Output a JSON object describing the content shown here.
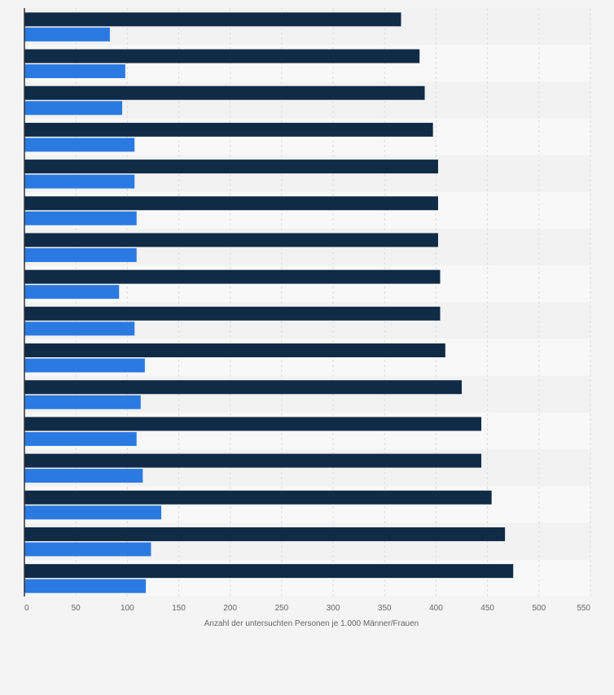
{
  "chart_data": {
    "type": "bar",
    "orientation": "horizontal",
    "title": "",
    "xlabel": "Anzahl der untersuchten Personen je 1.000 Männer/Frauen",
    "ylabel": "",
    "xlim": [
      0,
      550
    ],
    "x_ticks": [
      "0",
      "50",
      "100",
      "150",
      "200",
      "250",
      "300",
      "350",
      "400",
      "450",
      "500",
      "550"
    ],
    "grid": true,
    "legend": "none",
    "categories": [
      "",
      "",
      "",
      "",
      "",
      "",
      "",
      "",
      "",
      "",
      "",
      "",
      "",
      "",
      "",
      ""
    ],
    "series": [
      {
        "color": "#0f2b46",
        "values": [
          366,
          384,
          389,
          397,
          402,
          402,
          402,
          404,
          404,
          409,
          425,
          444,
          444,
          454,
          467,
          475
        ]
      },
      {
        "color": "#2a7ae2",
        "values": [
          83,
          98,
          95,
          107,
          107,
          109,
          109,
          92,
          107,
          117,
          113,
          109,
          115,
          133,
          123,
          118
        ]
      }
    ],
    "colors": {
      "plot_background_even": "#f2f2f2",
      "plot_background_odd": "#f8f8f8",
      "grid": "#dddddd",
      "axis": "#333333",
      "tick_text": "#666666"
    }
  }
}
